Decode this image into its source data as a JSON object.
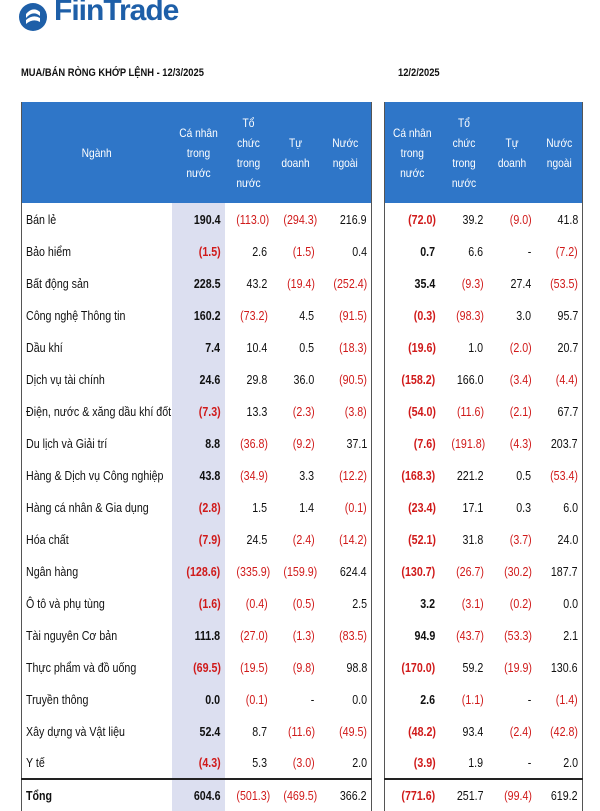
{
  "brand": {
    "logo_text": "FiinTrade",
    "color": "#1e5fa8"
  },
  "left": {
    "title": "MUA/BÁN RÒNG KHỚP LỆNH - 12/3/2025",
    "headers": [
      "Ngành",
      "Cá nhân trong nước",
      "Tổ chức trong nước",
      "Tự doanh",
      "Nước ngoài"
    ],
    "rows": [
      [
        "Bán lẻ",
        "190.4",
        "(113.0)",
        "(294.3)",
        "216.9"
      ],
      [
        "Bảo hiểm",
        "(1.5)",
        "2.6",
        "(1.5)",
        "0.4"
      ],
      [
        "Bất động sản",
        "228.5",
        "43.2",
        "(19.4)",
        "(252.4)"
      ],
      [
        "Công nghệ Thông tin",
        "160.2",
        "(73.2)",
        "4.5",
        "(91.5)"
      ],
      [
        "Dầu khí",
        "7.4",
        "10.4",
        "0.5",
        "(18.3)"
      ],
      [
        "Dịch vụ tài chính",
        "24.6",
        "29.8",
        "36.0",
        "(90.5)"
      ],
      [
        "Điện, nước & xăng dầu khí đốt",
        "(7.3)",
        "13.3",
        "(2.3)",
        "(3.8)"
      ],
      [
        "Du lịch và Giải trí",
        "8.8",
        "(36.8)",
        "(9.2)",
        "37.1"
      ],
      [
        "Hàng & Dịch vụ Công nghiệp",
        "43.8",
        "(34.9)",
        "3.3",
        "(12.2)"
      ],
      [
        "Hàng cá nhân & Gia dụng",
        "(2.8)",
        "1.5",
        "1.4",
        "(0.1)"
      ],
      [
        "Hóa chất",
        "(7.9)",
        "24.5",
        "(2.4)",
        "(14.2)"
      ],
      [
        "Ngân hàng",
        "(128.6)",
        "(335.9)",
        "(159.9)",
        "624.4"
      ],
      [
        "Ô tô và phụ tùng",
        "(1.6)",
        "(0.4)",
        "(0.5)",
        "2.5"
      ],
      [
        "Tài nguyên Cơ bản",
        "111.8",
        "(27.0)",
        "(1.3)",
        "(83.5)"
      ],
      [
        "Thực phẩm và đồ uống",
        "(69.5)",
        "(19.5)",
        "(9.8)",
        "98.8"
      ],
      [
        "Truyền thông",
        "0.0",
        "(0.1)",
        "-",
        "0.0"
      ],
      [
        "Xây dựng và Vật liệu",
        "52.4",
        "8.7",
        "(11.6)",
        "(49.5)"
      ],
      [
        "Y tế",
        "(4.3)",
        "5.3",
        "(3.0)",
        "2.0"
      ]
    ],
    "total": [
      "Tổng",
      "604.6",
      "(501.3)",
      "(469.5)",
      "366.2"
    ]
  },
  "right": {
    "title": "12/2/2025",
    "headers": [
      "Cá nhân trong nước",
      "Tổ chức trong nước",
      "Tự doanh",
      "Nước ngoài"
    ],
    "rows": [
      [
        "(72.0)",
        "39.2",
        "(9.0)",
        "41.8"
      ],
      [
        "0.7",
        "6.6",
        "-",
        "(7.2)"
      ],
      [
        "35.4",
        "(9.3)",
        "27.4",
        "(53.5)"
      ],
      [
        "(0.3)",
        "(98.3)",
        "3.0",
        "95.7"
      ],
      [
        "(19.6)",
        "1.0",
        "(2.0)",
        "20.7"
      ],
      [
        "(158.2)",
        "166.0",
        "(3.4)",
        "(4.4)"
      ],
      [
        "(54.0)",
        "(11.6)",
        "(2.1)",
        "67.7"
      ],
      [
        "(7.6)",
        "(191.8)",
        "(4.3)",
        "203.7"
      ],
      [
        "(168.3)",
        "221.2",
        "0.5",
        "(53.4)"
      ],
      [
        "(23.4)",
        "17.1",
        "0.3",
        "6.0"
      ],
      [
        "(52.1)",
        "31.8",
        "(3.7)",
        "24.0"
      ],
      [
        "(130.7)",
        "(26.7)",
        "(30.2)",
        "187.7"
      ],
      [
        "3.2",
        "(3.1)",
        "(0.2)",
        "0.0"
      ],
      [
        "94.9",
        "(43.7)",
        "(53.3)",
        "2.1"
      ],
      [
        "(170.0)",
        "59.2",
        "(19.9)",
        "130.6"
      ],
      [
        "2.6",
        "(1.1)",
        "-",
        "(1.4)"
      ],
      [
        "(48.2)",
        "93.4",
        "(2.4)",
        "(42.8)"
      ],
      [
        "(3.9)",
        "1.9",
        "-",
        "2.0"
      ]
    ],
    "total": [
      "(771.6)",
      "251.7",
      "(99.4)",
      "619.2"
    ]
  },
  "colors": {
    "header_bg": "#2f76c8",
    "highlight_bg": "#dcdff0",
    "negative": "#d01a1a"
  }
}
